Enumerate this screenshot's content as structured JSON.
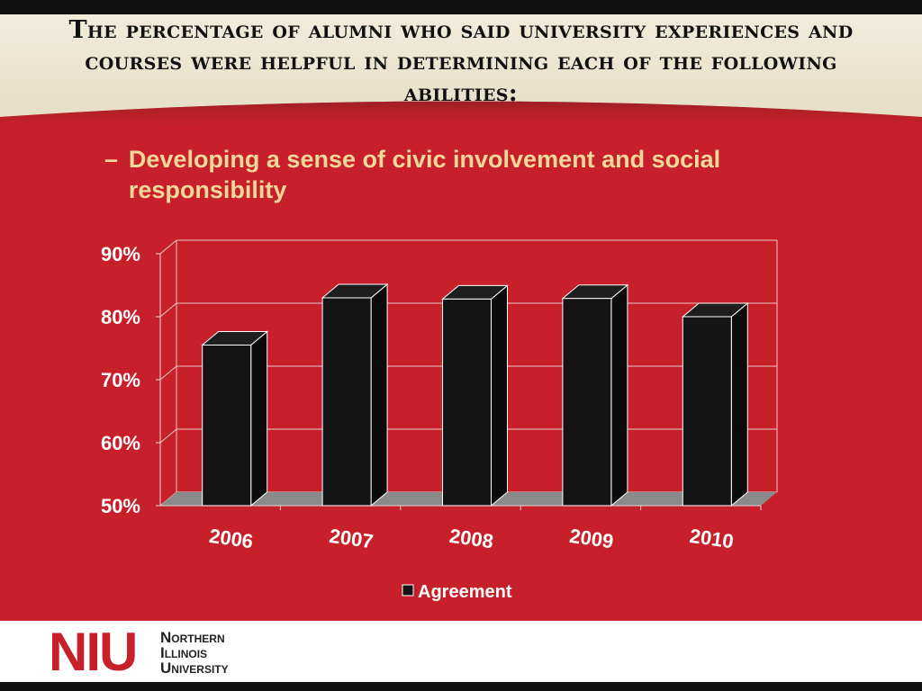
{
  "slide": {
    "title": "The percentage of alumni who said university experiences and courses were helpful in determining each of the following abilities:",
    "subtitle_bullet": "–",
    "subtitle": "Developing a sense of civic involvement and social responsibility"
  },
  "footer": {
    "logo_mark": "NIU",
    "logo_line1": "Northern",
    "logo_line2": "Illinois",
    "logo_line3": "University"
  },
  "colors": {
    "background": "#c8202a",
    "header_band": "#ede7d3",
    "bar_front": "#141414",
    "bar_top": "#1e1e1e",
    "bar_side": "#0b0b0b",
    "floor": "#8a8a8a",
    "subtitle": "#f2d79a"
  },
  "chart_data": {
    "type": "bar",
    "categories": [
      "2006",
      "2007",
      "2008",
      "2009",
      "2010"
    ],
    "series": [
      {
        "name": "Agreement",
        "values": [
          75.5,
          83,
          82.8,
          82.9,
          80
        ]
      }
    ],
    "ylim": [
      50,
      90
    ],
    "yticks": [
      50,
      60,
      70,
      80,
      90
    ],
    "ytick_labels": [
      "50%",
      "60%",
      "70%",
      "80%",
      "90%"
    ],
    "grid": true,
    "legend": "bottom",
    "style": "3d"
  }
}
